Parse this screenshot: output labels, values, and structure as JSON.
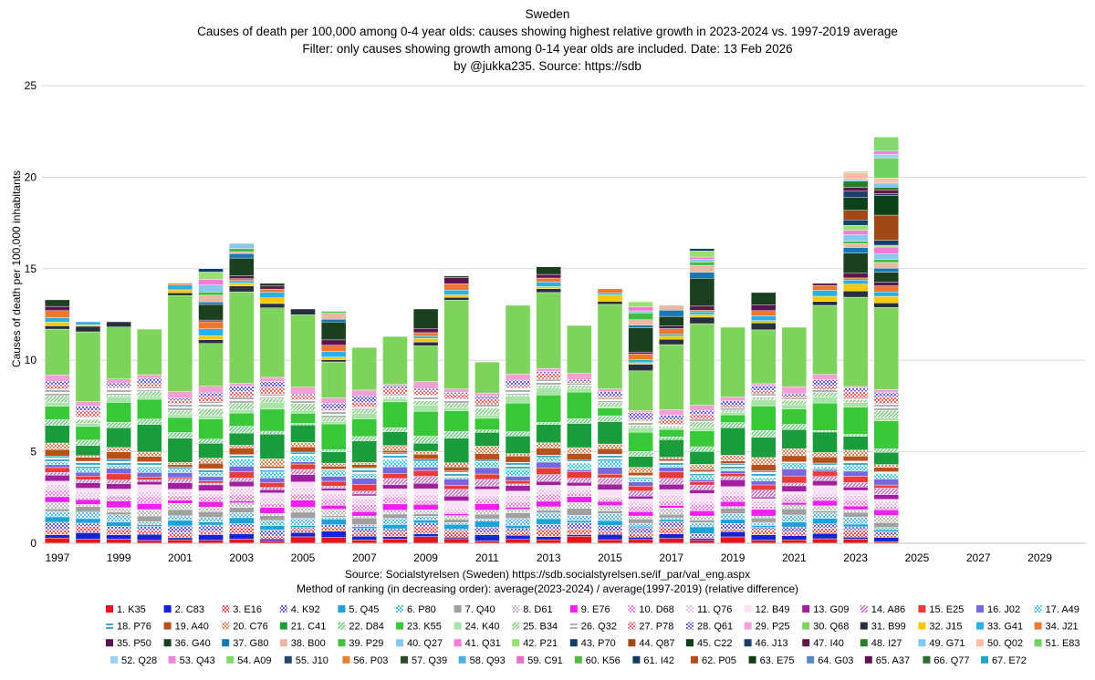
{
  "chart_data": {
    "type": "bar",
    "stacked": true,
    "title_lines": [
      "Sweden",
      "Causes of death per 100,000 among  0-4 year olds: causes showing highest relative  growth in 2023-2024 vs. 1997-2019 average",
      "Filter: only causes showing growth among 0-14 year olds are included.   Date: 13 Feb 2026",
      "by @jukka235. Source: https://sdb"
    ],
    "ylabel": "Causes of death per 100,000 inhabitants",
    "ylim": [
      0,
      25
    ],
    "yticks": [
      "0",
      "5",
      "10",
      "15",
      "20",
      "25"
    ],
    "categories": [
      1997,
      1998,
      1999,
      2000,
      2001,
      2002,
      2003,
      2004,
      2005,
      2006,
      2007,
      2008,
      2009,
      2010,
      2011,
      2012,
      2013,
      2014,
      2015,
      2016,
      2017,
      2018,
      2019,
      2020,
      2021,
      2022,
      2023,
      2024,
      2025,
      2026,
      2027,
      2028,
      2029,
      2030
    ],
    "x_tick_labels": [
      "1997",
      "1999",
      "2001",
      "2003",
      "2005",
      "2007",
      "2009",
      "2011",
      "2013",
      "2015",
      "2017",
      "2019",
      "2021",
      "2023",
      "2025",
      "2027",
      "2029"
    ],
    "totals": [
      13.3,
      12.1,
      12.1,
      11.7,
      14.2,
      15.0,
      16.4,
      14.2,
      12.8,
      12.7,
      10.7,
      11.3,
      12.8,
      14.6,
      9.9,
      13.0,
      15.1,
      11.9,
      13.9,
      13.2,
      13.0,
      16.1,
      11.8,
      13.7,
      11.8,
      14.2,
      20.3,
      22.2
    ],
    "footnotes": [
      "Source: Socialstyrelsen (Sweden)  https://sdb.socialstyrelsen.se/if_par/val_eng.aspx",
      "Method of ranking (in decreasing order): average(2023-2024) / average(1997-2019)  (relative difference)"
    ],
    "legend": [
      {
        "label": "1. K35",
        "color": "#e8141c",
        "pattern": "solid"
      },
      {
        "label": "2. C83",
        "color": "#1324d4",
        "pattern": "solid"
      },
      {
        "label": "3. E16",
        "color": "#f0504c",
        "pattern": "dots"
      },
      {
        "label": "4. K92",
        "color": "#6b5bd6",
        "pattern": "dots"
      },
      {
        "label": "5. Q45",
        "color": "#1ca3d8",
        "pattern": "solid"
      },
      {
        "label": "6. P80",
        "color": "#5ab8e8",
        "pattern": "dots"
      },
      {
        "label": "7. Q40",
        "color": "#a0a0a0",
        "pattern": "solid"
      },
      {
        "label": "8. D61",
        "color": "#b8b8b8",
        "pattern": "dots"
      },
      {
        "label": "9. E76",
        "color": "#f020f0",
        "pattern": "solid"
      },
      {
        "label": "10. D68",
        "color": "#f080e8",
        "pattern": "dots"
      },
      {
        "label": "11. Q76",
        "color": "#f4b8f0",
        "pattern": "dots"
      },
      {
        "label": "12. B49",
        "color": "#fde0f8",
        "pattern": "solid"
      },
      {
        "label": "13. G09",
        "color": "#a020a0",
        "pattern": "solid"
      },
      {
        "label": "14. A86",
        "color": "#c060c0",
        "pattern": "hatch"
      },
      {
        "label": "15. E25",
        "color": "#e83c3c",
        "pattern": "solid"
      },
      {
        "label": "16. J02",
        "color": "#7868e0",
        "pattern": "solid"
      },
      {
        "label": "17. A49",
        "color": "#40c8f0",
        "pattern": "dots"
      },
      {
        "label": "18. P76",
        "color": "#48a8c8",
        "pattern": "lines"
      },
      {
        "label": "19. A40",
        "color": "#b8501c",
        "pattern": "solid"
      },
      {
        "label": "20. C76",
        "color": "#d88050",
        "pattern": "dots"
      },
      {
        "label": "21. C41",
        "color": "#1a9c3c",
        "pattern": "solid"
      },
      {
        "label": "22. D84",
        "color": "#5cc870",
        "pattern": "hatch"
      },
      {
        "label": "23. K55",
        "color": "#38c838",
        "pattern": "solid"
      },
      {
        "label": "24. K40",
        "color": "#a8e4a8",
        "pattern": "solid"
      },
      {
        "label": "25. B34",
        "color": "#78c878",
        "pattern": "hatch"
      },
      {
        "label": "26. Q32",
        "color": "#b0b0b0",
        "pattern": "lines"
      },
      {
        "label": "27. P78",
        "color": "#ec6464",
        "pattern": "dots"
      },
      {
        "label": "28. Q61",
        "color": "#6c5ce0",
        "pattern": "dots"
      },
      {
        "label": "29. P25",
        "color": "#f4a0d4",
        "pattern": "solid"
      },
      {
        "label": "30. Q68",
        "color": "#7ed35c",
        "pattern": "solid"
      },
      {
        "label": "31. B99",
        "color": "#283040",
        "pattern": "solid"
      },
      {
        "label": "32. J15",
        "color": "#f8c800",
        "pattern": "solid"
      },
      {
        "label": "33. G41",
        "color": "#28b0e8",
        "pattern": "solid"
      },
      {
        "label": "34. J21",
        "color": "#ec7830",
        "pattern": "solid"
      },
      {
        "label": "35. P50",
        "color": "#5a1450",
        "pattern": "solid"
      },
      {
        "label": "36. G40",
        "color": "#1a4020",
        "pattern": "solid"
      },
      {
        "label": "37. G80",
        "color": "#1878b4",
        "pattern": "solid"
      },
      {
        "label": "38. B00",
        "color": "#e8b8a0",
        "pattern": "solid"
      },
      {
        "label": "39. P29",
        "color": "#40c040",
        "pattern": "solid"
      },
      {
        "label": "40. Q27",
        "color": "#88c8f0",
        "pattern": "solid"
      },
      {
        "label": "41. Q31",
        "color": "#f47cd4",
        "pattern": "solid"
      },
      {
        "label": "42. P21",
        "color": "#98e070",
        "pattern": "solid"
      },
      {
        "label": "43. P70",
        "color": "#10406c",
        "pattern": "solid"
      },
      {
        "label": "44. Q87",
        "color": "#a04818",
        "pattern": "solid"
      },
      {
        "label": "45. C22",
        "color": "#0c4018",
        "pattern": "solid"
      },
      {
        "label": "46. J13",
        "color": "#1e3c6c",
        "pattern": "solid"
      },
      {
        "label": "47. I40",
        "color": "#601848",
        "pattern": "solid"
      },
      {
        "label": "48. I27",
        "color": "#2c7c30",
        "pattern": "solid"
      },
      {
        "label": "49. G71",
        "color": "#80c8f0",
        "pattern": "solid"
      },
      {
        "label": "50. Q02",
        "color": "#f8c0a0",
        "pattern": "solid"
      },
      {
        "label": "51. E83",
        "color": "#70d060",
        "pattern": "solid"
      },
      {
        "label": "52. Q28",
        "color": "#9cd0f4",
        "pattern": "solid"
      },
      {
        "label": "53. Q43",
        "color": "#e888d8",
        "pattern": "solid"
      },
      {
        "label": "54. A09",
        "color": "#84d870",
        "pattern": "solid"
      },
      {
        "label": "55. J10",
        "color": "#244870",
        "pattern": "solid"
      },
      {
        "label": "56. P03",
        "color": "#e8802c",
        "pattern": "solid"
      },
      {
        "label": "57. Q39",
        "color": "#2c4c24",
        "pattern": "solid"
      },
      {
        "label": "58. Q93",
        "color": "#50b0e0",
        "pattern": "solid"
      },
      {
        "label": "59. C91",
        "color": "#e070c8",
        "pattern": "solid"
      },
      {
        "label": "60. K56",
        "color": "#58b848",
        "pattern": "solid"
      },
      {
        "label": "61. I42",
        "color": "#143c60",
        "pattern": "solid"
      },
      {
        "label": "62. P05",
        "color": "#b05020",
        "pattern": "solid"
      },
      {
        "label": "63. E75",
        "color": "#103c14",
        "pattern": "solid"
      },
      {
        "label": "64. G03",
        "color": "#5888c4",
        "pattern": "solid"
      },
      {
        "label": "65. A37",
        "color": "#5c1450",
        "pattern": "solid"
      },
      {
        "label": "66. Q77",
        "color": "#2c6c2c",
        "pattern": "solid"
      },
      {
        "label": "67. E72",
        "color": "#28a0d0",
        "pattern": "solid"
      }
    ]
  }
}
